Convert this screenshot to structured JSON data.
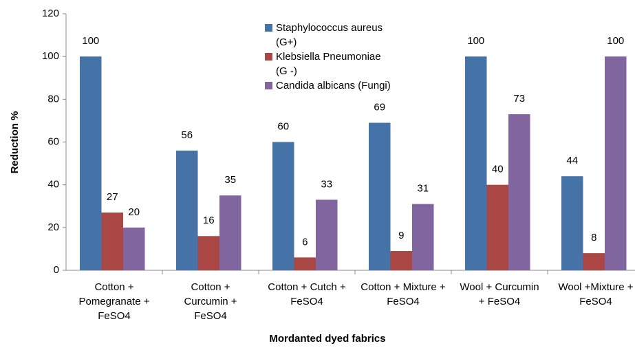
{
  "chart_data": {
    "type": "bar",
    "categories": [
      "Cotton + Pomegranate + FeSO4",
      "Cotton + Curcumin + FeSO4",
      "Cotton + Cutch + FeSO4",
      "Cotton + Mixture + FeSO4",
      "Wool + Curcumin + FeSO4",
      "Wool +Mixture + FeSO4"
    ],
    "series": [
      {
        "name": "Staphylococcus aureus (G+)",
        "color": "#4572a7",
        "values": [
          100,
          56,
          60,
          69,
          100,
          44
        ]
      },
      {
        "name": "Klebsiella Pneumoniae (G -)",
        "color": "#aa4643",
        "values": [
          27,
          16,
          6,
          9,
          40,
          8
        ]
      },
      {
        "name": "Candida albicans (Fungi)",
        "color": "#80659e",
        "values": [
          20,
          35,
          33,
          31,
          73,
          100
        ]
      }
    ],
    "ylim": [
      0,
      120
    ],
    "yticks": [
      0,
      20,
      40,
      60,
      80,
      100,
      120
    ],
    "y_label": "Reduction %",
    "x_label": "Mordanted dyed fabrics",
    "legend": "top"
  }
}
